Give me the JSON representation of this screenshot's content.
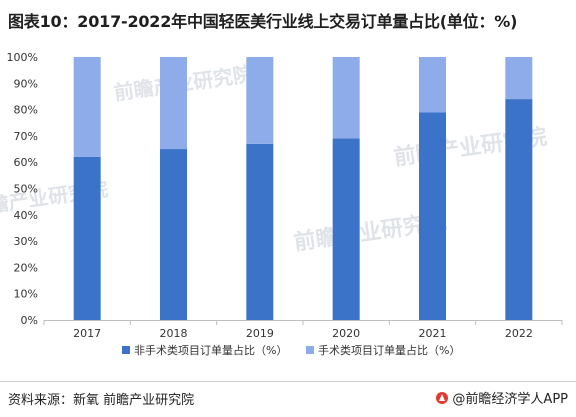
{
  "title": "图表10：2017-2022年中国轻医美行业线上交易订单量占比(单位：%)",
  "source": "资料来源：新氧 前瞻产业研究院",
  "brand": "@前瞻经济学人APP",
  "watermark": "前瞻产业研究院",
  "colors": {
    "series1": "#3a73c7",
    "series2": "#8eacea",
    "axis": "#bfbfbf"
  },
  "icons": {
    "brand": "front-brand-icon"
  },
  "chart_data": {
    "type": "bar",
    "stacked": true,
    "categories": [
      "2017",
      "2018",
      "2019",
      "2020",
      "2021",
      "2022"
    ],
    "series": [
      {
        "name": "非手术类项目订单量占比（%）",
        "values": [
          62,
          65,
          67,
          69,
          79,
          84
        ]
      },
      {
        "name": "手术类项目订单量占比（%）",
        "values": [
          38,
          35,
          33,
          31,
          21,
          16
        ]
      }
    ],
    "y_ticks": [
      "0%",
      "10%",
      "20%",
      "30%",
      "40%",
      "50%",
      "60%",
      "70%",
      "80%",
      "90%",
      "100%"
    ],
    "ylim": [
      0,
      100
    ],
    "grid": false,
    "legend_position": "bottom"
  }
}
